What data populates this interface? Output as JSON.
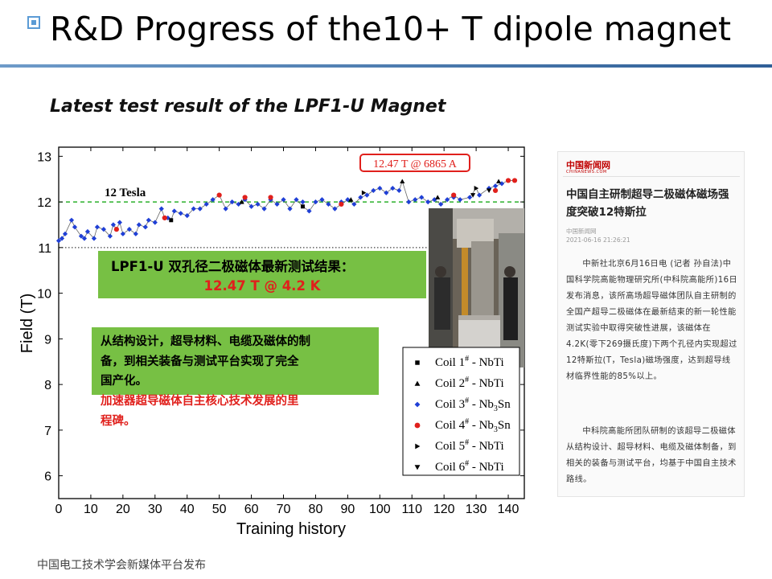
{
  "slide": {
    "title": "R&D Progress of the10+ T dipole magnet",
    "subtitle": "Latest test result of the LPF1-U Magnet",
    "footer": "中国电工技术学会新媒体平台发布"
  },
  "chart_data": {
    "type": "scatter",
    "xlabel": "Training history",
    "ylabel": "Field (T)",
    "xlim": [
      0,
      145
    ],
    "ylim": [
      5.5,
      13.2
    ],
    "x_ticks": [
      "0",
      "10",
      "20",
      "30",
      "40",
      "50",
      "60",
      "70",
      "80",
      "90",
      "100",
      "110",
      "120",
      "130",
      "140"
    ],
    "y_ticks": [
      "6",
      "7",
      "8",
      "9",
      "10",
      "11",
      "12",
      "13"
    ],
    "reference_lines": [
      {
        "value": 12,
        "label": "12 Tesla",
        "style": "dashed",
        "color": "#00a000"
      },
      {
        "value": 11,
        "label": "",
        "style": "dotted",
        "color": "#444444"
      }
    ],
    "peak_annotation": "12.47 T @ 6865 A",
    "callout_title": "LPF1-U 双孔径二极磁体最新测试结果：",
    "callout_value": "12.47 T @ 4.2 K",
    "note_black": "从结构设计，超导材料、电缆及磁体的制备，到相关装备与测试平台实现了完全国产化。",
    "note_red": "加速器超导磁体自主核心技术发展的里程碑。",
    "legend": [
      {
        "label": "Coil 1",
        "sup": "#",
        "suffix": " - NbTi",
        "marker": "square",
        "color": "#000000"
      },
      {
        "label": "Coil 2",
        "sup": "#",
        "suffix": " - NbTi",
        "marker": "triangle-up",
        "color": "#000000"
      },
      {
        "label": "Coil 3",
        "sup": "#",
        "suffix": " - Nb",
        "sub": "3",
        "suffix2": "Sn",
        "marker": "diamond",
        "color": "#1f3fd6"
      },
      {
        "label": "Coil 4",
        "sup": "#",
        "suffix": " - Nb",
        "sub": "3",
        "suffix2": "Sn",
        "marker": "circle",
        "color": "#e0201c"
      },
      {
        "label": "Coil 5",
        "sup": "#",
        "suffix": " - NbTi",
        "marker": "triangle-right",
        "color": "#000000"
      },
      {
        "label": "Coil 6",
        "sup": "#",
        "suffix": " - NbTi",
        "marker": "triangle-down",
        "color": "#000000"
      }
    ],
    "series": [
      {
        "name": "Coil 3# - Nb3Sn",
        "marker": "diamond",
        "color": "#1f3fd6",
        "points": [
          [
            0,
            11.15
          ],
          [
            1,
            11.2
          ],
          [
            2,
            11.3
          ],
          [
            4,
            11.6
          ],
          [
            5,
            11.45
          ],
          [
            7,
            11.25
          ],
          [
            8,
            11.2
          ],
          [
            9,
            11.35
          ],
          [
            11,
            11.2
          ],
          [
            12,
            11.45
          ],
          [
            14,
            11.4
          ],
          [
            16,
            11.25
          ],
          [
            17,
            11.5
          ],
          [
            19,
            11.55
          ],
          [
            20,
            11.3
          ],
          [
            22,
            11.4
          ],
          [
            24,
            11.3
          ],
          [
            25,
            11.5
          ],
          [
            27,
            11.45
          ],
          [
            28,
            11.6
          ],
          [
            30,
            11.55
          ],
          [
            32,
            11.85
          ],
          [
            34,
            11.65
          ],
          [
            36,
            11.8
          ],
          [
            38,
            11.75
          ],
          [
            40,
            11.7
          ],
          [
            42,
            11.85
          ],
          [
            44,
            11.85
          ],
          [
            46,
            11.95
          ],
          [
            48,
            12.05
          ],
          [
            52,
            11.85
          ],
          [
            54,
            12.0
          ],
          [
            56,
            11.95
          ],
          [
            58,
            12.05
          ],
          [
            60,
            11.9
          ],
          [
            62,
            11.95
          ],
          [
            64,
            11.85
          ],
          [
            66,
            12.05
          ],
          [
            68,
            11.95
          ],
          [
            70,
            12.05
          ],
          [
            72,
            11.85
          ],
          [
            74,
            12.05
          ],
          [
            76,
            12.0
          ],
          [
            78,
            11.8
          ],
          [
            80,
            12.0
          ],
          [
            82,
            12.05
          ],
          [
            84,
            11.95
          ],
          [
            86,
            11.85
          ],
          [
            88,
            12.0
          ],
          [
            90,
            12.05
          ],
          [
            92,
            11.95
          ],
          [
            94,
            12.1
          ],
          [
            96,
            12.15
          ],
          [
            98,
            12.25
          ],
          [
            100,
            12.3
          ],
          [
            102,
            12.2
          ],
          [
            104,
            12.3
          ],
          [
            106,
            12.25
          ],
          [
            109,
            12.0
          ],
          [
            111,
            12.05
          ],
          [
            113,
            12.1
          ],
          [
            115,
            12.0
          ],
          [
            117,
            12.05
          ],
          [
            119,
            11.95
          ],
          [
            121,
            12.05
          ],
          [
            123,
            12.1
          ],
          [
            125,
            12.05
          ],
          [
            128,
            12.1
          ],
          [
            131,
            12.15
          ],
          [
            134,
            12.3
          ],
          [
            136,
            12.35
          ],
          [
            138,
            12.4
          ]
        ]
      },
      {
        "name": "Coil 4# - Nb3Sn",
        "marker": "circle",
        "color": "#e0201c",
        "points": [
          [
            18,
            11.4
          ],
          [
            33,
            11.65
          ],
          [
            50,
            12.15
          ],
          [
            58,
            12.1
          ],
          [
            66,
            12.1
          ],
          [
            88,
            11.95
          ],
          [
            123,
            12.15
          ],
          [
            136,
            12.25
          ],
          [
            140,
            12.47
          ],
          [
            142,
            12.47
          ]
        ]
      },
      {
        "name": "Coil 1# - NbTi",
        "marker": "square",
        "color": "#000000",
        "points": [
          [
            35,
            11.6
          ],
          [
            76,
            11.9
          ]
        ]
      },
      {
        "name": "Coil 2# - NbTi",
        "marker": "triangle-up",
        "color": "#000000",
        "points": [
          [
            57,
            12.0
          ],
          [
            91,
            12.05
          ],
          [
            107,
            12.45
          ],
          [
            118,
            12.1
          ],
          [
            137,
            12.45
          ]
        ]
      },
      {
        "name": "Coil 5# - NbTi",
        "marker": "triangle-right",
        "color": "#000000",
        "points": [
          [
            95,
            12.2
          ],
          [
            130,
            12.3
          ]
        ]
      },
      {
        "name": "Coil 6# - NbTi",
        "marker": "triangle-down",
        "color": "#000000",
        "points": [
          [
            129,
            12.15
          ],
          [
            134,
            12.25
          ]
        ]
      }
    ],
    "trend": [
      [
        0,
        11.15
      ],
      [
        1,
        11.2
      ],
      [
        2,
        11.3
      ],
      [
        4,
        11.6
      ],
      [
        5,
        11.45
      ],
      [
        7,
        11.25
      ],
      [
        8,
        11.2
      ],
      [
        9,
        11.35
      ],
      [
        11,
        11.2
      ],
      [
        12,
        11.45
      ],
      [
        14,
        11.4
      ],
      [
        16,
        11.25
      ],
      [
        17,
        11.5
      ],
      [
        18,
        11.4
      ],
      [
        19,
        11.55
      ],
      [
        20,
        11.3
      ],
      [
        22,
        11.4
      ],
      [
        24,
        11.3
      ],
      [
        25,
        11.5
      ],
      [
        27,
        11.45
      ],
      [
        28,
        11.6
      ],
      [
        30,
        11.55
      ],
      [
        32,
        11.85
      ],
      [
        33,
        11.65
      ],
      [
        34,
        11.65
      ],
      [
        35,
        11.6
      ],
      [
        36,
        11.8
      ],
      [
        38,
        11.75
      ],
      [
        40,
        11.7
      ],
      [
        42,
        11.85
      ],
      [
        44,
        11.85
      ],
      [
        46,
        11.95
      ],
      [
        48,
        12.05
      ],
      [
        50,
        12.15
      ],
      [
        52,
        11.85
      ],
      [
        54,
        12.0
      ],
      [
        56,
        11.95
      ],
      [
        57,
        12.0
      ],
      [
        58,
        12.05
      ],
      [
        60,
        11.9
      ],
      [
        62,
        11.95
      ],
      [
        64,
        11.85
      ],
      [
        66,
        12.05
      ],
      [
        68,
        11.95
      ],
      [
        70,
        12.05
      ],
      [
        72,
        11.85
      ],
      [
        74,
        12.05
      ],
      [
        76,
        11.9
      ],
      [
        78,
        11.8
      ],
      [
        80,
        12.0
      ],
      [
        82,
        12.05
      ],
      [
        84,
        11.95
      ],
      [
        86,
        11.85
      ],
      [
        88,
        11.95
      ],
      [
        90,
        12.05
      ],
      [
        92,
        11.95
      ],
      [
        94,
        12.1
      ],
      [
        96,
        12.15
      ],
      [
        98,
        12.25
      ],
      [
        100,
        12.3
      ],
      [
        102,
        12.2
      ],
      [
        104,
        12.3
      ],
      [
        106,
        12.25
      ],
      [
        107,
        12.45
      ],
      [
        109,
        12.0
      ],
      [
        111,
        12.05
      ],
      [
        113,
        12.1
      ],
      [
        115,
        12.0
      ],
      [
        117,
        12.05
      ],
      [
        119,
        11.95
      ],
      [
        121,
        12.05
      ],
      [
        123,
        12.15
      ],
      [
        125,
        12.05
      ],
      [
        128,
        12.1
      ],
      [
        130,
        12.3
      ],
      [
        131,
        12.15
      ],
      [
        134,
        12.3
      ],
      [
        136,
        12.35
      ],
      [
        138,
        12.4
      ],
      [
        140,
        12.47
      ],
      [
        142,
        12.47
      ]
    ]
  },
  "news": {
    "logo": "中国新闻网",
    "logo_sub": "CHINANEWS.COM",
    "headline": "中国自主研制超导二极磁体磁场强度突破12特斯拉",
    "source": "中国新闻网",
    "time": "2021-06-16 21:26:21",
    "para1": "中新社北京6月16日电 (记者 孙自法)中国科学院高能物理研究所(中科院高能所)16日发布消息，该所高场超导磁体团队自主研制的全国产超导二极磁体在最新结束的新一轮性能测试实验中取得突破性进展，该磁体在4.2K(零下269摄氏度)下两个孔径内实现超过12特斯拉(T，Tesla)磁场强度，达到超导线材临界性能的85%以上。",
    "para2": "中科院高能所团队研制的该超导二极磁体从结构设计、超导材料、电缆及磁体制备，到相关的装备与测试平台，均基于中国自主技术路线。"
  }
}
